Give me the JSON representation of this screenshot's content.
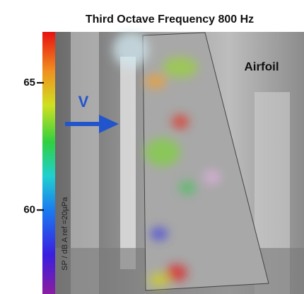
{
  "header": {
    "title": "Third Octave Frequency 800 Hz"
  },
  "colorbar": {
    "label": "SP / dB A ref =20µPa",
    "range": [
      56.7,
      67
    ],
    "ticks": [
      60,
      65
    ]
  },
  "annotations": {
    "velocity": "V",
    "object": "Airfoil"
  }
}
